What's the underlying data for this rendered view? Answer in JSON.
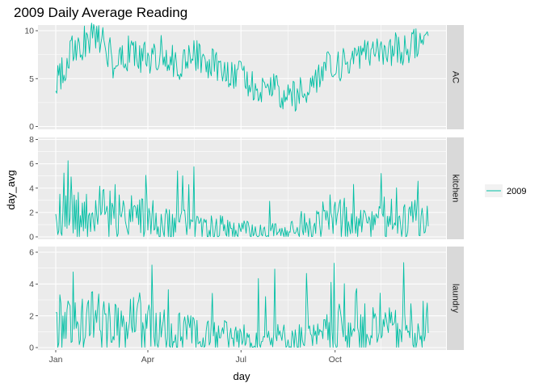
{
  "chart_data": {
    "type": "line",
    "title": "2009 Daily Average Reading",
    "xlabel": "day",
    "ylabel": "day_avg",
    "x_ticks": [
      "Jan",
      "Apr",
      "Jul",
      "Oct"
    ],
    "x_tick_dates": [
      "2009-01-01",
      "2009-04-01",
      "2009-07-01",
      "2009-10-01"
    ],
    "x_range": [
      "2009-01-01",
      "2009-12-31"
    ],
    "legend": {
      "placement": "right",
      "entries": [
        "2009"
      ]
    },
    "grid": true,
    "colors": {
      "series": "#00BFA4",
      "panel_background": "#EBEBEB",
      "strip_background": "#D9D9D9",
      "grid": "#FFFFFF",
      "text": "#4D4D4D"
    },
    "panels": [
      {
        "facet": "AC",
        "ylim": [
          0,
          13.5
        ],
        "y_ticks": [
          0,
          5,
          10
        ],
        "series": [
          {
            "name": "2009",
            "x": [
              "2009-01-01",
              "2009-01-15",
              "2009-02-01",
              "2009-02-15",
              "2009-03-01",
              "2009-03-15",
              "2009-04-01",
              "2009-04-15",
              "2009-05-01",
              "2009-05-15",
              "2009-06-01",
              "2009-06-15",
              "2009-07-01",
              "2009-07-15",
              "2009-08-01",
              "2009-08-15",
              "2009-09-01",
              "2009-09-15",
              "2009-10-01",
              "2009-10-15",
              "2009-11-01",
              "2009-11-15",
              "2009-12-01",
              "2009-12-15",
              "2009-12-31"
            ],
            "y": [
              4.5,
              7.5,
              9,
              9.5,
              6,
              8,
              7,
              8,
              6.5,
              7.5,
              6.5,
              6,
              5.5,
              4,
              4,
              3,
              3.5,
              5.5,
              6.5,
              6.5,
              7.5,
              8,
              8,
              8.5,
              10
            ]
          }
        ]
      },
      {
        "facet": "kitchen",
        "ylim": [
          0,
          8
        ],
        "y_ticks": [
          0,
          2,
          4,
          6,
          8
        ],
        "series": [
          {
            "name": "2009",
            "x": [
              "2009-01-01",
              "2009-01-15",
              "2009-02-01",
              "2009-02-15",
              "2009-03-01",
              "2009-03-15",
              "2009-04-01",
              "2009-04-15",
              "2009-05-01",
              "2009-05-15",
              "2009-06-01",
              "2009-06-15",
              "2009-07-01",
              "2009-07-15",
              "2009-08-01",
              "2009-08-15",
              "2009-09-01",
              "2009-09-15",
              "2009-10-01",
              "2009-10-15",
              "2009-11-01",
              "2009-11-15",
              "2009-12-01",
              "2009-12-15",
              "2009-12-31"
            ],
            "y": [
              1.5,
              2,
              1.5,
              2,
              2,
              1.5,
              1.5,
              1,
              1,
              0.8,
              0.8,
              0.7,
              0.6,
              0.5,
              0.4,
              0.3,
              1,
              1.2,
              1.8,
              1.3,
              1.2,
              1.4,
              1.1,
              1.3,
              1.5
            ]
          }
        ]
      },
      {
        "facet": "laundry",
        "ylim": [
          0,
          7.5
        ],
        "y_ticks": [
          0,
          2,
          4,
          6
        ],
        "series": [
          {
            "name": "2009",
            "x": [
              "2009-01-01",
              "2009-01-15",
              "2009-02-01",
              "2009-02-15",
              "2009-03-01",
              "2009-03-15",
              "2009-04-01",
              "2009-04-15",
              "2009-05-01",
              "2009-05-15",
              "2009-06-01",
              "2009-06-15",
              "2009-07-01",
              "2009-07-15",
              "2009-08-01",
              "2009-08-15",
              "2009-09-01",
              "2009-09-15",
              "2009-10-01",
              "2009-10-15",
              "2009-11-01",
              "2009-11-15",
              "2009-12-01",
              "2009-12-15",
              "2009-12-31"
            ],
            "y": [
              1.5,
              1.4,
              1.6,
              1.5,
              1.3,
              1.4,
              1.2,
              1,
              1,
              0.9,
              0.8,
              0.7,
              0.6,
              0.5,
              0.6,
              0.6,
              0.6,
              0.6,
              1.2,
              1.1,
              1.2,
              1.1,
              1,
              1.2,
              1.3
            ]
          }
        ]
      }
    ]
  }
}
